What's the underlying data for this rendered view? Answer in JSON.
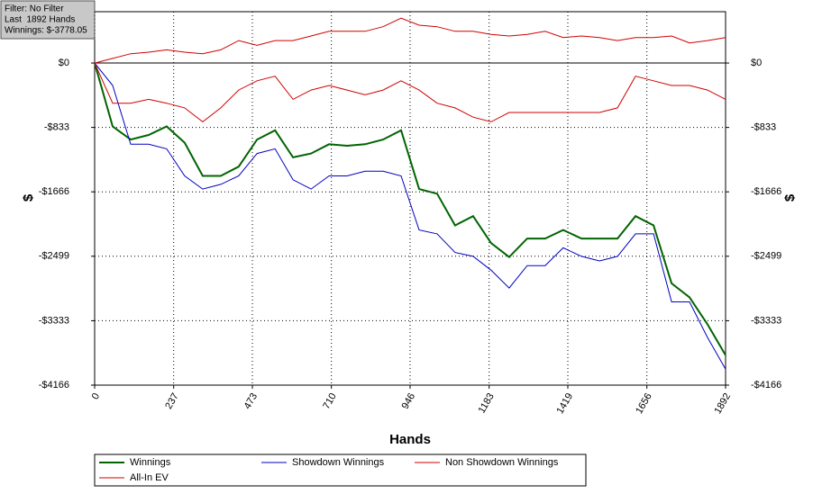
{
  "chart_data": {
    "type": "line",
    "info_box": [
      "Filter: No Filter",
      "Last  1892 Hands",
      "Winnings: $-3778.05"
    ],
    "xlabel": "Hands",
    "ylabel": "$",
    "y2label": "$",
    "x": [
      0,
      54,
      108,
      162,
      216,
      270,
      324,
      378,
      432,
      487,
      541,
      595,
      649,
      703,
      757,
      811,
      865,
      919,
      973,
      1027,
      1081,
      1135,
      1189,
      1243,
      1297,
      1351,
      1405,
      1460,
      1514,
      1568,
      1622,
      1676,
      1730,
      1784,
      1838,
      1892
    ],
    "xlim": [
      0,
      1892
    ],
    "xticks": [
      0,
      237,
      473,
      710,
      946,
      1183,
      1419,
      1656,
      1892
    ],
    "ylim": [
      -4166,
      664
    ],
    "yticks": [
      {
        "value": 0,
        "label": "$0"
      },
      {
        "value": -833,
        "label": "-$833"
      },
      {
        "value": -1666,
        "label": "-$1666"
      },
      {
        "value": -2499,
        "label": "-$2499"
      },
      {
        "value": -3333,
        "label": "-$3333"
      },
      {
        "value": -4166,
        "label": "-$4166"
      }
    ],
    "grid": true,
    "series": [
      {
        "name": "Winnings",
        "color": "#006400",
        "width": 2,
        "values": [
          0,
          -820,
          -990,
          -930,
          -820,
          -1030,
          -1460,
          -1460,
          -1340,
          -990,
          -870,
          -1220,
          -1170,
          -1050,
          -1070,
          -1050,
          -990,
          -870,
          -1630,
          -1690,
          -2100,
          -1980,
          -2330,
          -2510,
          -2270,
          -2270,
          -2160,
          -2270,
          -2270,
          -2270,
          -1980,
          -2100,
          -2850,
          -3030,
          -3380,
          -3778
        ]
      },
      {
        "name": "Showdown Winnings",
        "color": "#0000c0",
        "width": 1,
        "values": [
          0,
          -290,
          -1050,
          -1050,
          -1110,
          -1460,
          -1630,
          -1570,
          -1460,
          -1170,
          -1110,
          -1510,
          -1630,
          -1460,
          -1460,
          -1400,
          -1400,
          -1460,
          -2160,
          -2210,
          -2450,
          -2500,
          -2680,
          -2910,
          -2620,
          -2620,
          -2390,
          -2500,
          -2560,
          -2500,
          -2210,
          -2210,
          -3090,
          -3090,
          -3550,
          -3960
        ]
      },
      {
        "name": "Non Showdown Winnings",
        "color": "#d00000",
        "width": 1,
        "values": [
          0,
          -520,
          -520,
          -470,
          -520,
          -580,
          -760,
          -580,
          -350,
          -230,
          -170,
          -470,
          -350,
          -290,
          -350,
          -410,
          -350,
          -230,
          -350,
          -520,
          -580,
          -700,
          -760,
          -640,
          -640,
          -640,
          -640,
          -640,
          -640,
          -580,
          -170,
          -230,
          -290,
          -290,
          -350,
          -470
        ]
      },
      {
        "name": "All-In EV",
        "color": "#d00000",
        "width": 1,
        "values": [
          0,
          60,
          120,
          140,
          170,
          140,
          120,
          170,
          290,
          230,
          290,
          290,
          350,
          410,
          410,
          410,
          470,
          580,
          490,
          470,
          410,
          410,
          370,
          350,
          370,
          410,
          330,
          350,
          330,
          290,
          330,
          330,
          350,
          260,
          290,
          330
        ]
      }
    ]
  }
}
